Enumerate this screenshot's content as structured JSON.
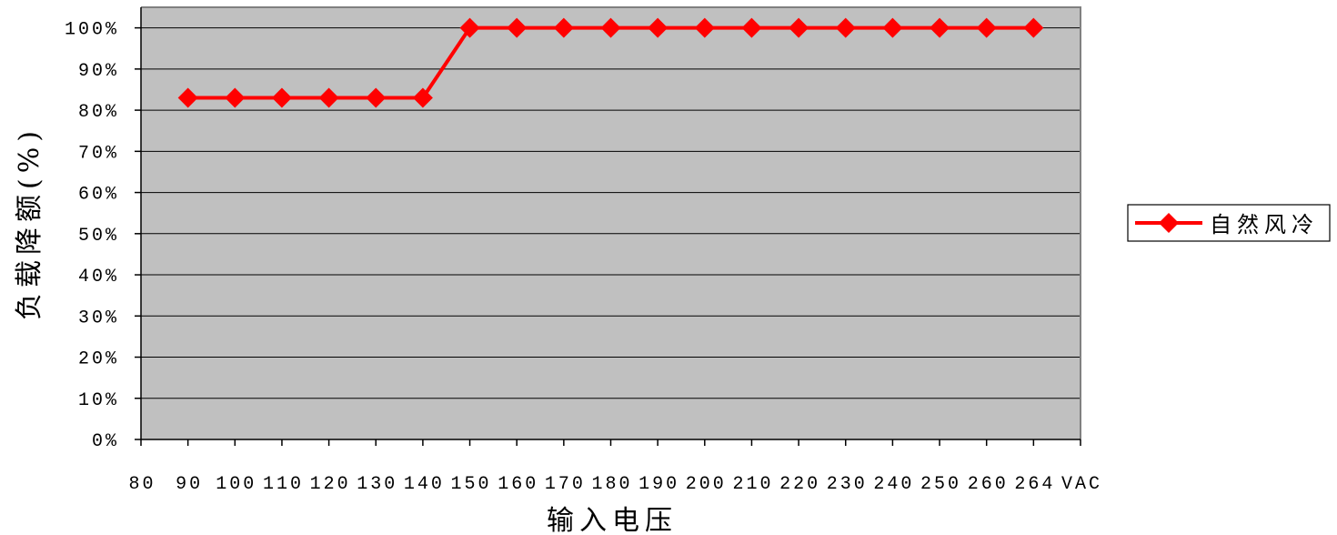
{
  "chart_data": {
    "type": "line",
    "xlabel": "输入电压",
    "ylabel": "负载降额(%)",
    "categories": [
      "80",
      "90",
      "100",
      "110",
      "120",
      "130",
      "140",
      "150",
      "160",
      "170",
      "180",
      "190",
      "200",
      "210",
      "220",
      "230",
      "240",
      "250",
      "260",
      "264",
      "VAC"
    ],
    "y_tick_values": [
      0,
      10,
      20,
      30,
      40,
      50,
      60,
      70,
      80,
      90,
      100
    ],
    "y_tick_labels": [
      "0%",
      "10%",
      "20%",
      "30%",
      "40%",
      "50%",
      "60%",
      "70%",
      "80%",
      "90%",
      "100%"
    ],
    "ylim": [
      0,
      105
    ],
    "grid": true,
    "legend": "right",
    "series": [
      {
        "name": "自然风冷",
        "color": "#FF0000",
        "marker": "diamond",
        "values": [
          null,
          83,
          83,
          83,
          83,
          83,
          83,
          100,
          100,
          100,
          100,
          100,
          100,
          100,
          100,
          100,
          100,
          100,
          100,
          100,
          null
        ]
      }
    ]
  },
  "colors": {
    "plot_area": "#C0C0C0",
    "plot_border": "#808080",
    "gridline": "#000000",
    "axis": "#000000"
  }
}
